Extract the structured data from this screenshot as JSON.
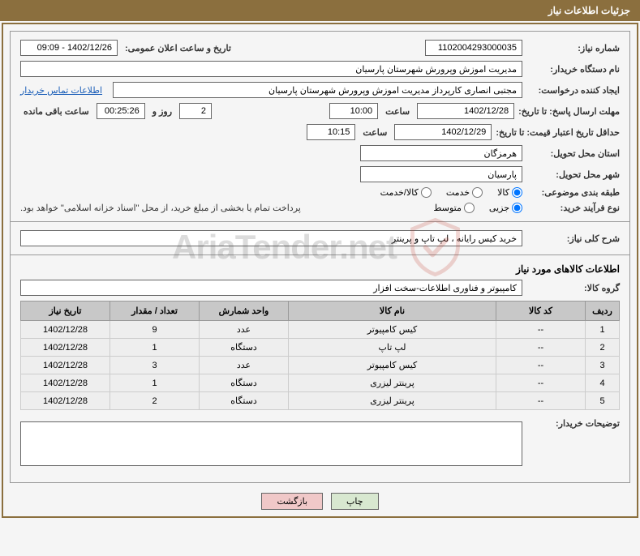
{
  "header": {
    "title": "جزئیات اطلاعات نیاز"
  },
  "fields": {
    "need_no_label": "شماره نیاز:",
    "need_no": "1102004293000035",
    "announce_label": "تاریخ و ساعت اعلان عمومی:",
    "announce": "1402/12/26 - 09:09",
    "buyer_org_label": "نام دستگاه خریدار:",
    "buyer_org": "مدیریت اموزش وپرورش شهرستان پارسیان",
    "requester_label": "ایجاد کننده درخواست:",
    "requester": "مجتبی انصاری کارپرداز مدیریت اموزش وپرورش شهرستان پارسیان",
    "contact_link": "اطلاعات تماس خریدار",
    "deadline_label": "مهلت ارسال پاسخ: تا تاریخ:",
    "deadline_date": "1402/12/28",
    "time_label": "ساعت",
    "deadline_time": "10:00",
    "days_remaining": "2",
    "days_and_label": "روز و",
    "countdown": "00:25:26",
    "remaining_label": "ساعت باقی مانده",
    "validity_label": "حداقل تاریخ اعتبار قیمت: تا تاریخ:",
    "validity_date": "1402/12/29",
    "validity_time": "10:15",
    "province_label": "استان محل تحویل:",
    "province": "هرمزگان",
    "city_label": "شهر محل تحویل:",
    "city": "پارسیان",
    "category_label": "طبقه بندی موضوعی:",
    "cat_goods": "کالا",
    "cat_service": "خدمت",
    "cat_both": "کالا/خدمت",
    "purchase_type_label": "نوع فرآیند خرید:",
    "pt_partial": "جزیی",
    "pt_medium": "متوسط",
    "payment_note": "پرداخت تمام یا بخشی از مبلغ خرید، از محل \"اسناد خزانه اسلامی\" خواهد بود.",
    "summary_label": "شرح کلی نیاز:",
    "summary": "خرید کیس رایانه ، لپ تاپ و پرینتر",
    "goods_info_title": "اطلاعات کالاهای مورد نیاز",
    "goods_group_label": "گروه کالا:",
    "goods_group": "کامپیوتر و فناوری اطلاعات-سخت افزار",
    "buyer_notes_label": "توضیحات خریدار:"
  },
  "table": {
    "headers": {
      "idx": "ردیف",
      "code": "کد کالا",
      "name": "نام کالا",
      "unit": "واحد شمارش",
      "qty": "تعداد / مقدار",
      "date": "تاریخ نیاز"
    },
    "rows": [
      {
        "idx": "1",
        "code": "--",
        "name": "کیس کامپیوتر",
        "unit": "عدد",
        "qty": "9",
        "date": "1402/12/28"
      },
      {
        "idx": "2",
        "code": "--",
        "name": "لپ تاپ",
        "unit": "دستگاه",
        "qty": "1",
        "date": "1402/12/28"
      },
      {
        "idx": "3",
        "code": "--",
        "name": "کیس کامپیوتر",
        "unit": "عدد",
        "qty": "3",
        "date": "1402/12/28"
      },
      {
        "idx": "4",
        "code": "--",
        "name": "پرینتر لیزری",
        "unit": "دستگاه",
        "qty": "1",
        "date": "1402/12/28"
      },
      {
        "idx": "5",
        "code": "--",
        "name": "پرینتر لیزری",
        "unit": "دستگاه",
        "qty": "2",
        "date": "1402/12/28"
      }
    ]
  },
  "buttons": {
    "print": "چاپ",
    "back": "بازگشت"
  },
  "watermark": {
    "text": "AriaTender.net"
  },
  "colors": {
    "header_bg": "#8b6f3e",
    "border": "#999999",
    "th_bg": "#c8c8c8",
    "td_bg": "#eeeeee",
    "link": "#1a5eb8"
  }
}
